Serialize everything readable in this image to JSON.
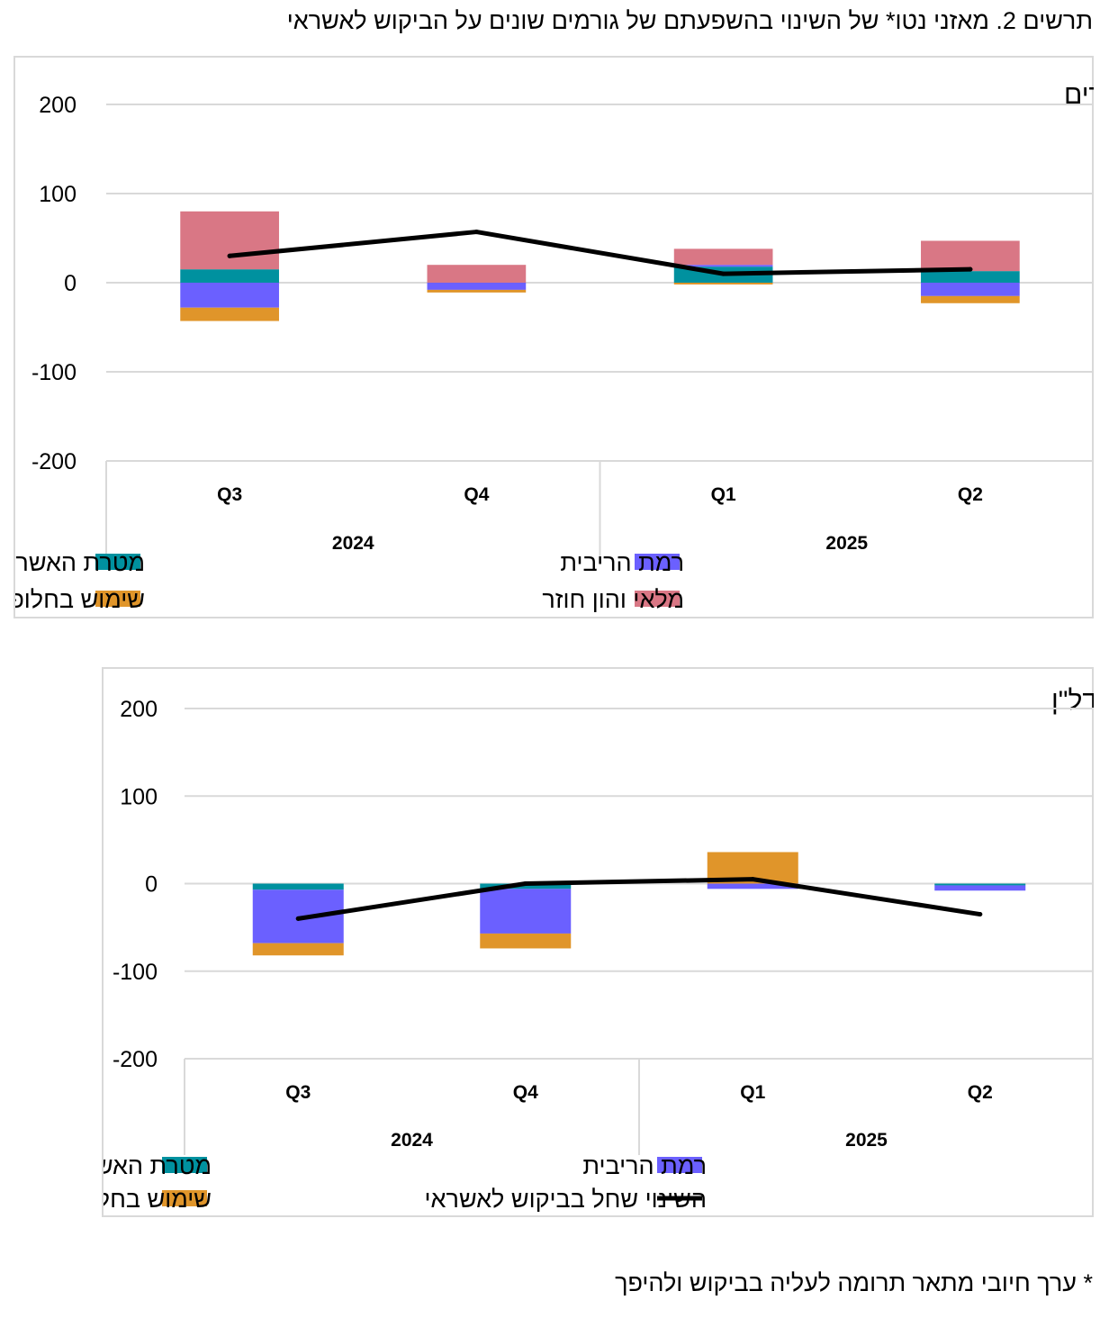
{
  "figure_title": "תרשים 2. מאזני נטו* של השינוי בהשפעתם של גורמים שונים על הביקוש לאשראי",
  "footnote": "* ערך חיובי מתאר תרומה לעליה בביקוש ולהיפך",
  "colors": {
    "credit_purpose": "#00919f",
    "interest_rate": "#6b60ff",
    "alt_financing": "#e0952a",
    "inventory_capital": "#d97785",
    "net_change_line": "#000000",
    "grid": "#d9d9d9"
  },
  "chart_data": [
    {
      "type": "bar",
      "stacked": true,
      "title": "א. עסקים קטנים וזעירים",
      "categories": [
        "Q3",
        "Q4",
        "Q1",
        "Q2"
      ],
      "years": [
        {
          "label": "2024",
          "span": 2
        },
        {
          "label": "2025",
          "span": 2
        }
      ],
      "ylim": [
        -200,
        200
      ],
      "yticks": [
        200,
        100,
        0,
        -100,
        -200
      ],
      "grid": true,
      "legend_position": "bottom",
      "series": [
        {
          "name": "מטרת האשראי או המניע לאשראי",
          "color": "#00919f",
          "values": [
            15,
            0,
            18,
            13
          ]
        },
        {
          "name": "רמת הריבית",
          "color": "#6b60ff",
          "values": [
            -28,
            -8,
            2,
            -15
          ]
        },
        {
          "name": "שימוש בחלופות מימון",
          "color": "#e0952a",
          "values": [
            -15,
            -3,
            -2,
            -8
          ]
        },
        {
          "name": "מלאי והון חוזר",
          "color": "#d97785",
          "values": [
            65,
            20,
            18,
            34
          ]
        }
      ],
      "line": {
        "name": "",
        "values": [
          30,
          57,
          10,
          15
        ]
      },
      "legend": [
        {
          "name": "מטרת האשראי או המניע לאשראי",
          "color": "#00919f",
          "kind": "box"
        },
        {
          "name": "רמת הריבית",
          "color": "#6b60ff",
          "kind": "box"
        },
        {
          "name": "שימוש בחלופות מימון",
          "color": "#e0952a",
          "kind": "box"
        },
        {
          "name": "מלאי והון חוזר",
          "color": "#d97785",
          "kind": "box"
        }
      ]
    },
    {
      "type": "bar",
      "stacked": true,
      "title": "ב. נדל\"ן",
      "categories": [
        "Q3",
        "Q4",
        "Q1",
        "Q2"
      ],
      "years": [
        {
          "label": "2024",
          "span": 2
        },
        {
          "label": "2025",
          "span": 2
        }
      ],
      "ylim": [
        -200,
        200
      ],
      "yticks": [
        200,
        100,
        0,
        -100,
        -200
      ],
      "grid": true,
      "legend_position": "bottom",
      "series": [
        {
          "name": "מטרת האשראי או המניע לאשראי",
          "color": "#00919f",
          "values": [
            -7,
            -6,
            0,
            -2
          ]
        },
        {
          "name": "רמת הריבית",
          "color": "#6b60ff",
          "values": [
            -61,
            -51,
            -6,
            -6
          ]
        },
        {
          "name": "שימוש בחלופות מימון",
          "color": "#e0952a",
          "values": [
            -14,
            -17,
            36,
            0
          ]
        }
      ],
      "line": {
        "name": "השינוי שחל בביקוש לאשראי",
        "values": [
          -40,
          0,
          5,
          -35
        ]
      },
      "legend": [
        {
          "name": "מטרת האשראי או המניע לאשראי",
          "color": "#00919f",
          "kind": "box"
        },
        {
          "name": "רמת הריבית",
          "color": "#6b60ff",
          "kind": "box"
        },
        {
          "name": "שימוש בחלופות מימון",
          "color": "#e0952a",
          "kind": "box"
        },
        {
          "name": "השינוי שחל בביקוש לאשראי",
          "color": "#000000",
          "kind": "line"
        }
      ]
    }
  ]
}
